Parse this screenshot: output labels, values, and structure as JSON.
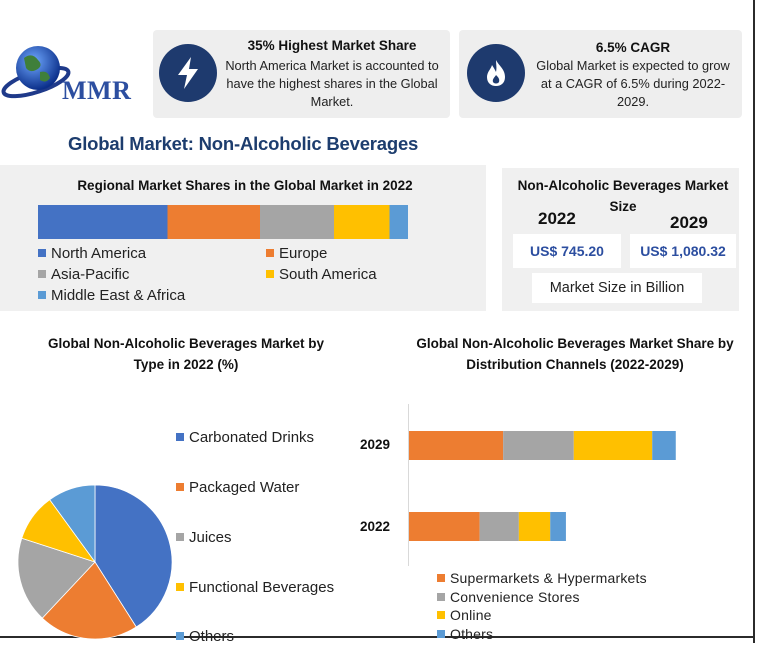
{
  "logo": {
    "text": "MMR"
  },
  "cards": [
    {
      "icon": "lightning-icon",
      "title": "35% Highest Market Share",
      "text": "North America Market is accounted to have the highest shares in the Global Market."
    },
    {
      "icon": "flame-icon",
      "title": "6.5% CAGR",
      "text": "Global Market is expected to grow at a CAGR of 6.5% during 2022-2029."
    }
  ],
  "main_title": "Global Market: Non-Alcoholic Beverages",
  "size_panel": {
    "title": "Non-Alcoholic Beverages Market Size",
    "year_a": "2022",
    "year_b": "2029",
    "value_a": "US$ 745.20",
    "value_b": "US$ 1,080.32",
    "caption": "Market Size in Billion"
  },
  "colors": {
    "blue": "#4472c4",
    "orange": "#ed7d31",
    "gray": "#a5a5a5",
    "yellow": "#ffc000",
    "light_blue": "#5b9bd5",
    "navy": "#1e3a6e"
  },
  "chart_data": [
    {
      "type": "bar",
      "orientation": "horizontal-stacked",
      "title": "Regional Market Shares in the Global Market in 2022",
      "series": [
        {
          "name": "North America",
          "value": 35
        },
        {
          "name": "Europe",
          "value": 25
        },
        {
          "name": "Asia-Pacific",
          "value": 20
        },
        {
          "name": "South America",
          "value": 15
        },
        {
          "name": "Middle East & Africa",
          "value": 5
        }
      ],
      "legend_position": "bottom"
    },
    {
      "type": "pie",
      "title": "Global Non-Alcoholic Beverages Market by Type in 2022 (%)",
      "slices": [
        {
          "name": "Carbonated Drinks",
          "value": 41
        },
        {
          "name": "Packaged Water",
          "value": 21
        },
        {
          "name": "Juices",
          "value": 18
        },
        {
          "name": "Functional Beverages",
          "value": 10
        },
        {
          "name": "Others",
          "value": 10
        }
      ],
      "legend_position": "right"
    },
    {
      "type": "bar",
      "orientation": "horizontal-stacked",
      "title": "Global Non-Alcoholic Beverages Market Share by Distribution Channels (2022-2029)",
      "categories": [
        "2029",
        "2022"
      ],
      "series": [
        {
          "name": "Supermarkets & Hypermarkets",
          "values": [
            36,
            27
          ]
        },
        {
          "name": "Convenience Stores",
          "values": [
            27,
            15
          ]
        },
        {
          "name": "Online",
          "values": [
            30,
            12
          ]
        },
        {
          "name": "Others",
          "values": [
            9,
            6
          ]
        }
      ],
      "xlim": [
        0,
        130
      ],
      "legend_position": "bottom"
    }
  ]
}
